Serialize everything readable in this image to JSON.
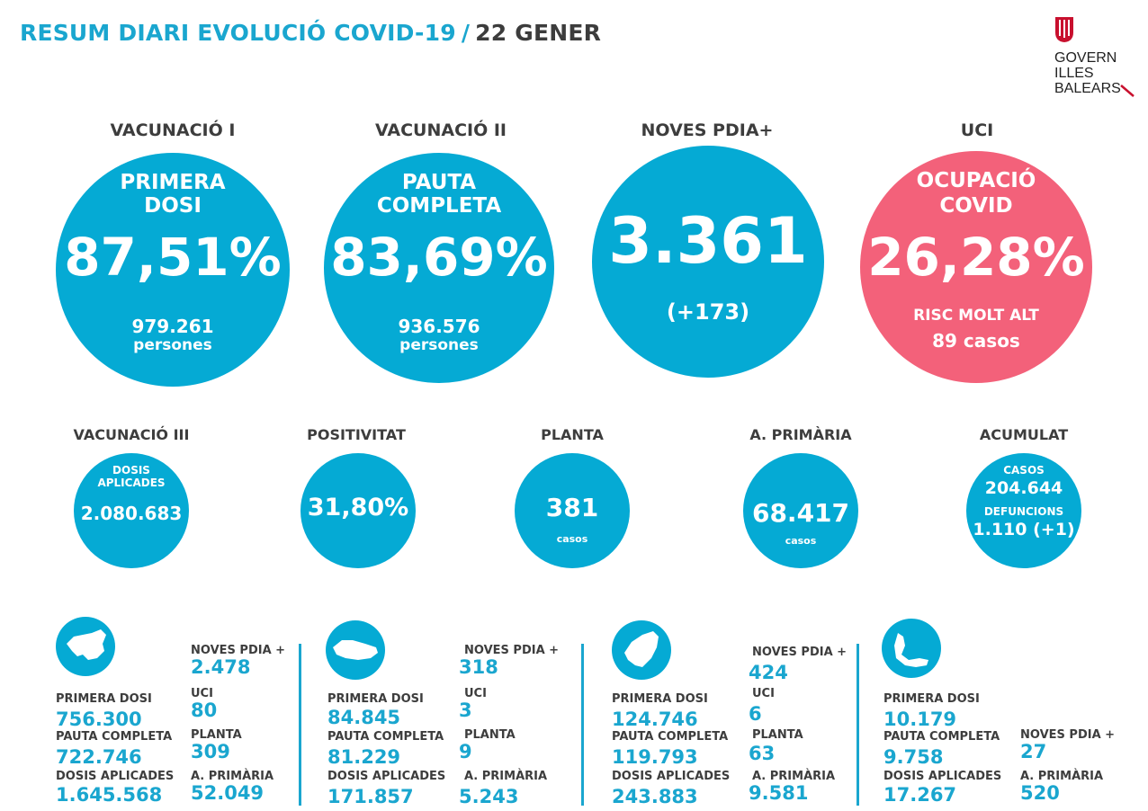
{
  "header": {
    "title": "RESUM DIARI EVOLUCIÓ COVID-19",
    "separator": "/",
    "date": "22 GENER"
  },
  "logo": {
    "line1": "GOVERN",
    "line2": "ILLES",
    "line3": "BALEARS",
    "icon": "coat-of-arms-icon"
  },
  "colors": {
    "accent_blue": "#05aad4",
    "alert_pink": "#f3617a",
    "text_dark": "#3d3d3d"
  },
  "big_stats": [
    {
      "label": "VACUNACIÓ I",
      "sub1": "PRIMERA",
      "sub2": "DOSI",
      "value": "87,51%",
      "foot1": "979.261",
      "foot2": "persones"
    },
    {
      "label": "VACUNACIÓ II",
      "sub1": "PAUTA",
      "sub2": "COMPLETA",
      "value": "83,69%",
      "foot1": "936.576",
      "foot2": "persones"
    },
    {
      "label": "NOVES PDIA+",
      "value": "3.361",
      "foot1": "(+173)"
    },
    {
      "label": "UCI",
      "sub1": "OCUPACIÓ",
      "sub2": "COVID",
      "value": "26,28%",
      "foot1": "RISC MOLT ALT",
      "foot2": "89  casos"
    }
  ],
  "mid_stats": [
    {
      "label": "VACUNACIÓ III",
      "sub1": "DOSIS",
      "sub2": "APLICADES",
      "value": "2.080.683"
    },
    {
      "label": "POSITIVITAT",
      "value": "31,80%"
    },
    {
      "label": "PLANTA",
      "value": "381",
      "foot": "casos"
    },
    {
      "label": "A. PRIMÀRIA",
      "value": "68.417",
      "foot": "casos"
    },
    {
      "label": "ACUMULAT",
      "sub1": "CASOS",
      "value1": "204.644",
      "sub2": "DEFUNCIONS",
      "value2": "1.110 (+1)"
    }
  ],
  "islands": [
    {
      "icon": "mallorca-icon",
      "primera_dosi_label": "PRIMERA DOSI",
      "primera_dosi": "756.300",
      "pauta_label": "PAUTA COMPLETA",
      "pauta": "722.746",
      "dosis_label": "DOSIS APLICADES",
      "dosis": "1.645.568",
      "pdia_label": "NOVES PDIA +",
      "pdia": "2.478",
      "uci_label": "UCI",
      "uci": "80",
      "planta_label": "PLANTA",
      "planta": "309",
      "ap_label": "A. PRIMÀRIA",
      "ap": "52.049"
    },
    {
      "icon": "menorca-icon",
      "primera_dosi_label": "PRIMERA DOSI",
      "primera_dosi": "84.845",
      "pauta_label": "PAUTA COMPLETA",
      "pauta": "81.229",
      "dosis_label": "DOSIS APLICADES",
      "dosis": "171.857",
      "pdia_label": "NOVES PDIA +",
      "pdia": "318",
      "uci_label": "UCI",
      "uci": "3",
      "planta_label": "PLANTA",
      "planta": "9",
      "ap_label": "A. PRIMÀRIA",
      "ap": "5.243"
    },
    {
      "icon": "eivissa-icon",
      "primera_dosi_label": "PRIMERA DOSI",
      "primera_dosi": "124.746",
      "pauta_label": "PAUTA COMPLETA",
      "pauta": "119.793",
      "dosis_label": "DOSIS APLICADES",
      "dosis": "243.883",
      "pdia_label": "NOVES PDIA +",
      "pdia": "424",
      "uci_label": "UCI",
      "uci": "6",
      "planta_label": "PLANTA",
      "planta": "63",
      "ap_label": "A. PRIMÀRIA",
      "ap": "9.581"
    },
    {
      "icon": "formentera-icon",
      "primera_dosi_label": "PRIMERA DOSI",
      "primera_dosi": "10.179",
      "pauta_label": "PAUTA COMPLETA",
      "pauta": "9.758",
      "dosis_label": "DOSIS APLICADES",
      "dosis": "17.267",
      "pdia_label": "NOVES PDIA +",
      "pdia": "27",
      "ap_label": "A. PRIMÀRIA",
      "ap": "520"
    }
  ]
}
